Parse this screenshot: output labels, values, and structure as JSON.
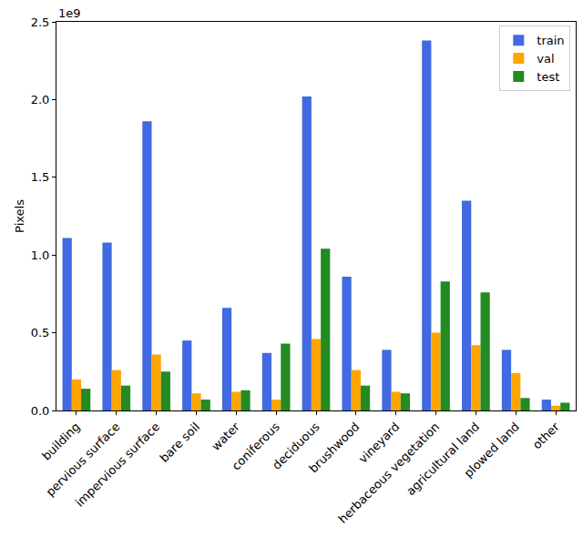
{
  "chart_data": {
    "type": "bar",
    "y_label": "Pixels",
    "y_multiplier": "1e9",
    "categories": [
      "building",
      "pervious surface",
      "impervious surface",
      "bare soil",
      "water",
      "coniferous",
      "deciduous",
      "brushwood",
      "vineyard",
      "herbaceous vegetation",
      "agricultural land",
      "plowed land",
      "other"
    ],
    "series": [
      {
        "name": "train",
        "color": "#4169e1",
        "values": [
          1.11,
          1.08,
          1.86,
          0.45,
          0.66,
          0.37,
          2.02,
          0.86,
          0.39,
          2.38,
          1.35,
          0.39,
          0.07
        ]
      },
      {
        "name": "val",
        "color": "#ffa500",
        "values": [
          0.2,
          0.26,
          0.36,
          0.11,
          0.12,
          0.07,
          0.46,
          0.26,
          0.12,
          0.5,
          0.42,
          0.24,
          0.03
        ]
      },
      {
        "name": "test",
        "color": "#228b22",
        "values": [
          0.14,
          0.16,
          0.25,
          0.07,
          0.13,
          0.43,
          1.04,
          0.16,
          0.11,
          0.83,
          0.76,
          0.08,
          0.05
        ]
      }
    ],
    "ylim": [
      0,
      2.5
    ],
    "yticks": [
      {
        "value": 0,
        "label": "0.0"
      },
      {
        "value": 0.5,
        "label": "0.5"
      },
      {
        "value": 1,
        "label": "1.0"
      },
      {
        "value": 1.5,
        "label": "1.5"
      },
      {
        "value": 2,
        "label": "2.0"
      },
      {
        "value": 2.5,
        "label": "2.5"
      }
    ],
    "grid": false,
    "legend": "top-right"
  }
}
